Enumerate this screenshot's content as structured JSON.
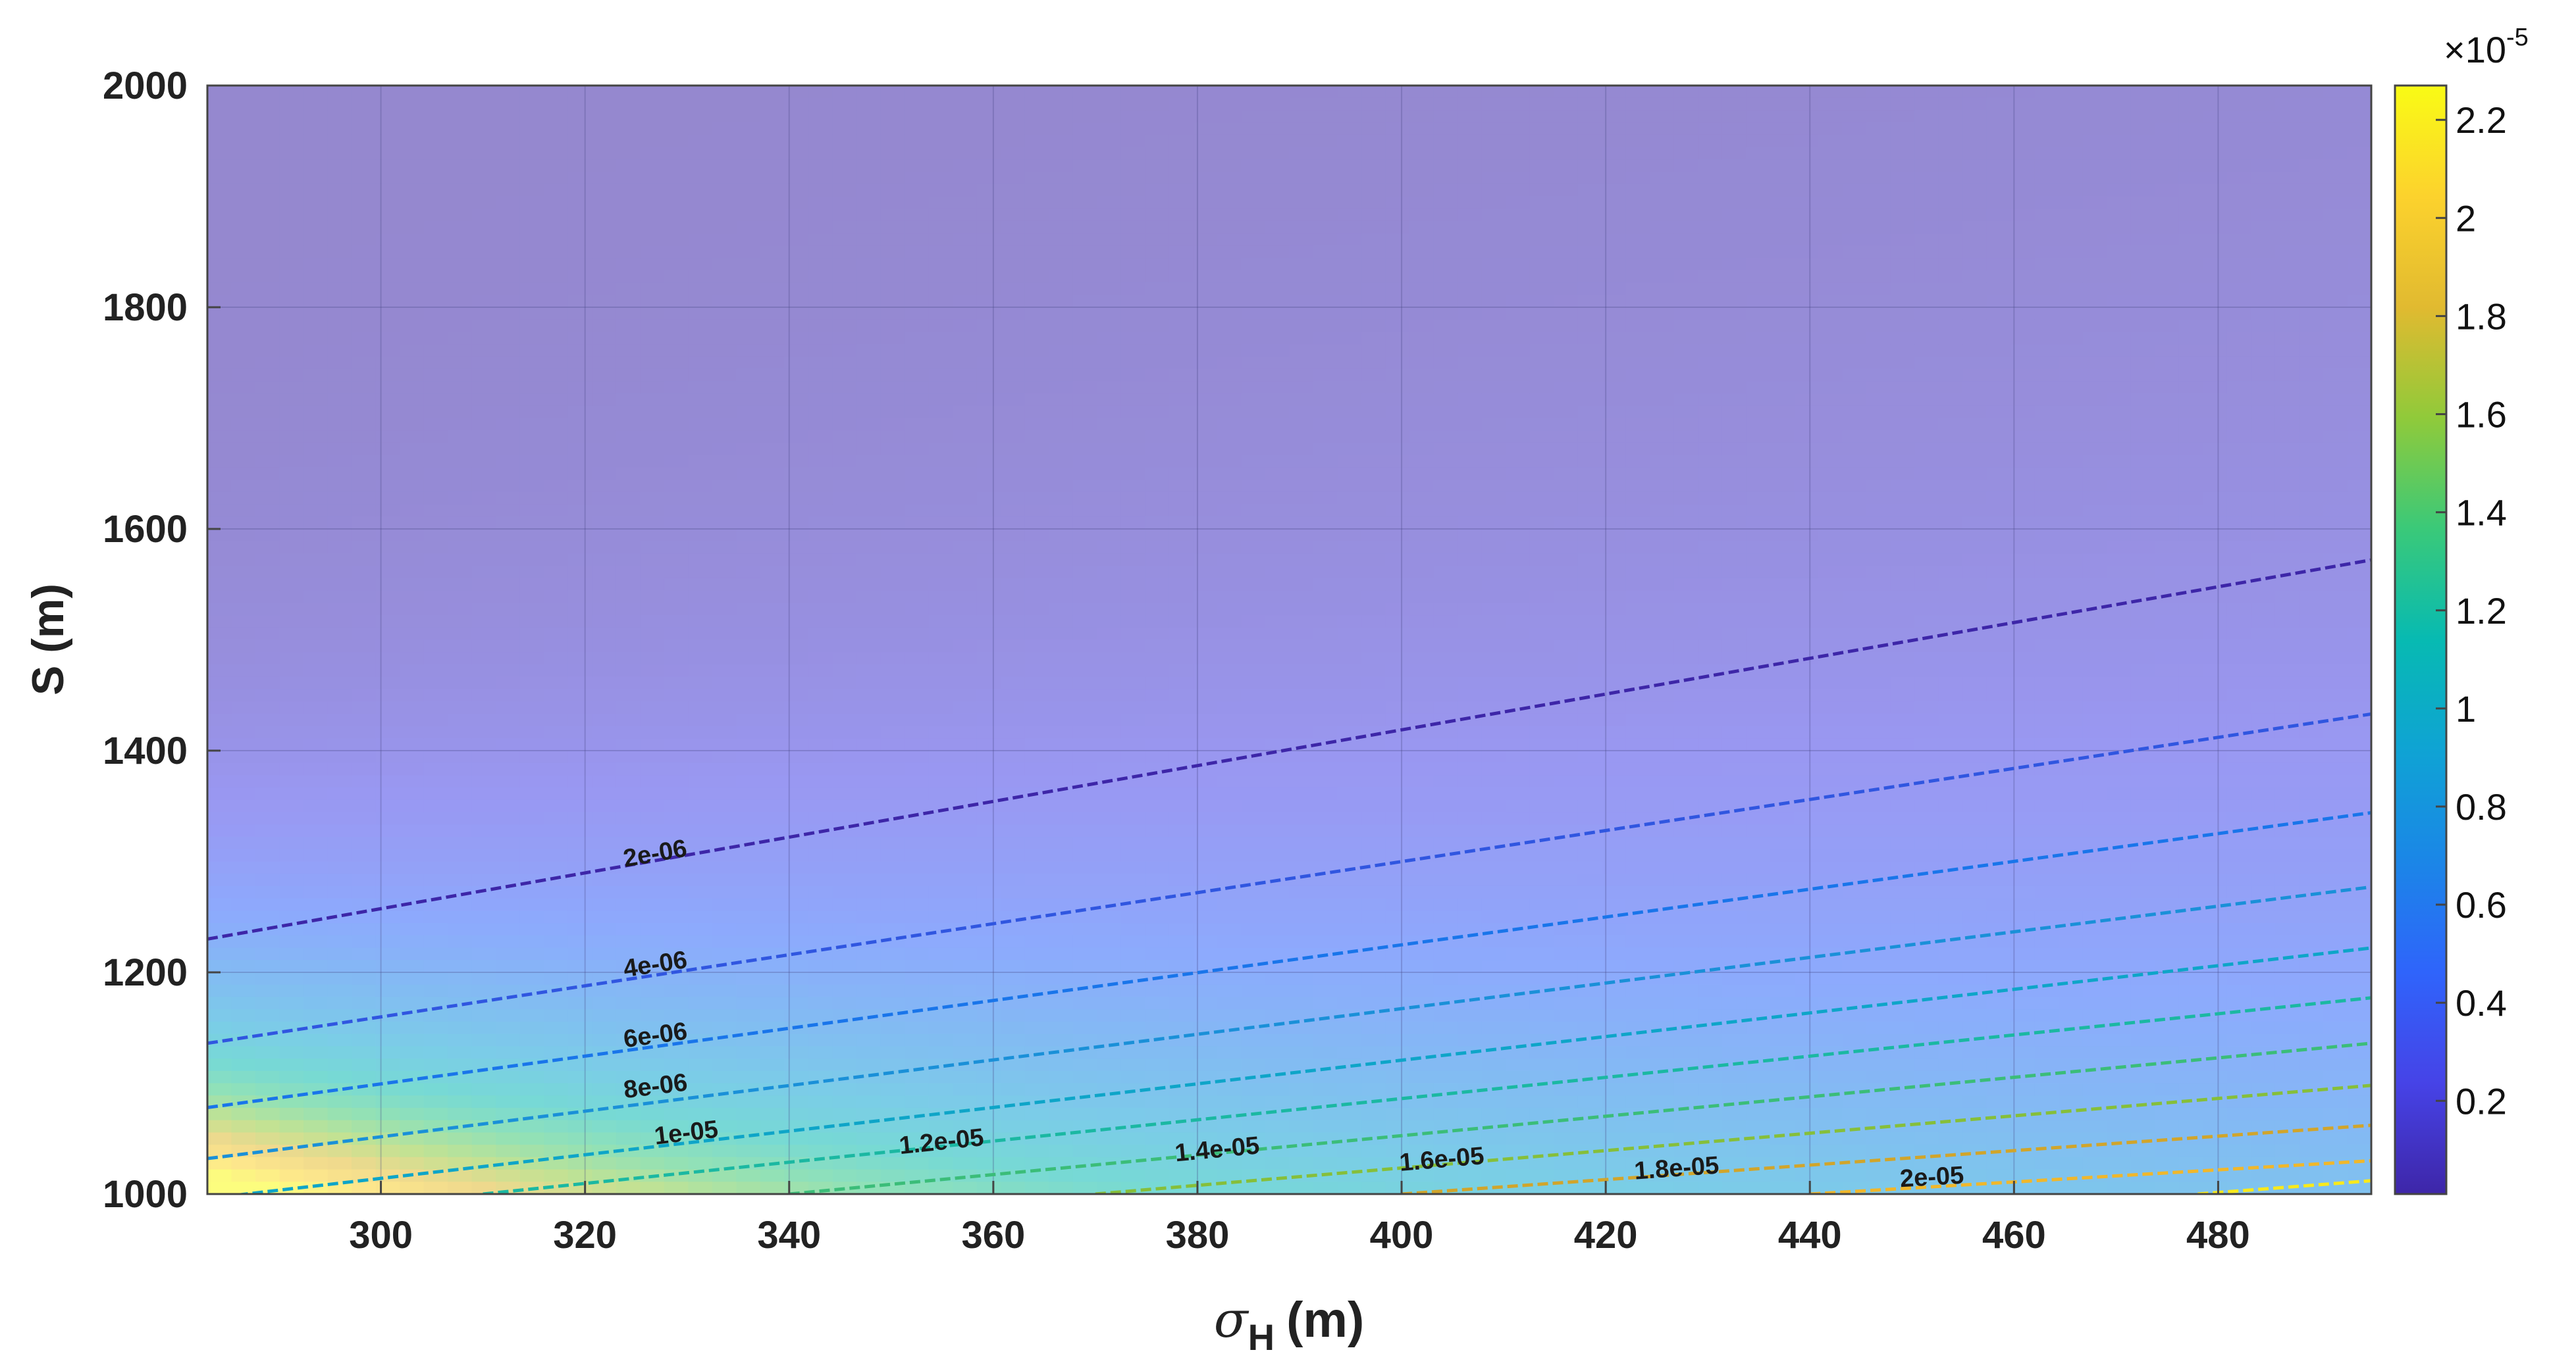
{
  "chart_data": {
    "type": "heatmap",
    "title": "",
    "xlabel_symbol": "σ",
    "xlabel_sub": "H",
    "xlabel_unit": "(m)",
    "ylabel": "S (m)",
    "xlim": [
      283,
      495
    ],
    "ylim": [
      1000,
      2000
    ],
    "xticks": [
      300,
      320,
      340,
      360,
      380,
      400,
      420,
      440,
      460,
      480
    ],
    "yticks": [
      1000,
      1200,
      1400,
      1600,
      1800,
      2000
    ],
    "grid": true,
    "colorbar": {
      "range": [
        0.01,
        2.27
      ],
      "ticks": [
        "0.2",
        "0.4",
        "0.6",
        "0.8",
        "1",
        "1.2",
        "1.4",
        "1.6",
        "1.8",
        "2",
        "2.2"
      ],
      "tick_values": [
        0.2,
        0.4,
        0.6,
        0.8,
        1.0,
        1.2,
        1.4,
        1.6,
        1.8,
        2.0,
        2.2
      ],
      "multiplier_base": "×10",
      "multiplier_exp": "-5",
      "colormap": "parula"
    },
    "contours": [
      {
        "level": 2e-06,
        "label": "2e-06",
        "x": [
          283,
          495
        ],
        "y": [
          1230,
          1572
        ],
        "color": "#3d26a8",
        "label_at": [
          327,
          1300
        ]
      },
      {
        "level": 4e-06,
        "label": "4e-06",
        "x": [
          283,
          495
        ],
        "y": [
          1136,
          1433
        ],
        "color": "#3056e0",
        "label_at": [
          327,
          1200
        ]
      },
      {
        "level": 6e-06,
        "label": "6e-06",
        "x": [
          283,
          495
        ],
        "y": [
          1078,
          1344
        ],
        "color": "#1975ea",
        "label_at": [
          327,
          1136
        ]
      },
      {
        "level": 8e-06,
        "label": "8e-06",
        "x": [
          283,
          495
        ],
        "y": [
          1032,
          1277
        ],
        "color": "#1a90d8",
        "label_at": [
          327,
          1090
        ]
      },
      {
        "level": 1e-05,
        "label": "1e-05",
        "x": [
          283,
          495
        ],
        "y": [
          996,
          1222
        ],
        "color": "#0ea5c8",
        "label_at": [
          330,
          1048
        ]
      },
      {
        "level": 1.2e-05,
        "label": "1.2e-05",
        "x": [
          310,
          495
        ],
        "y": [
          1000,
          1177
        ],
        "color": "#1bb8a2",
        "label_at": [
          355,
          1040
        ]
      },
      {
        "level": 1.4e-05,
        "label": "1.4e-05",
        "x": [
          340,
          495
        ],
        "y": [
          1000,
          1136
        ],
        "color": "#3bbd79",
        "label_at": [
          382,
          1033
        ]
      },
      {
        "level": 1.6e-05,
        "label": "1.6e-05",
        "x": [
          370,
          495
        ],
        "y": [
          1000,
          1098
        ],
        "color": "#86bf3a",
        "label_at": [
          404,
          1024
        ]
      },
      {
        "level": 1.8e-05,
        "label": "1.8e-05",
        "x": [
          400,
          495
        ],
        "y": [
          1000,
          1062
        ],
        "color": "#d1a52b",
        "label_at": [
          427,
          1016
        ]
      },
      {
        "level": 2e-05,
        "label": "2e-05",
        "x": [
          440,
          495
        ],
        "y": [
          1000,
          1030
        ],
        "color": "#f0b72b",
        "label_at": [
          452,
          1008
        ]
      },
      {
        "level": 2.2e-05,
        "label": "",
        "x": [
          478,
          495
        ],
        "y": [
          1000,
          1012
        ],
        "color": "#f8e91c",
        "label_at": null
      }
    ]
  }
}
